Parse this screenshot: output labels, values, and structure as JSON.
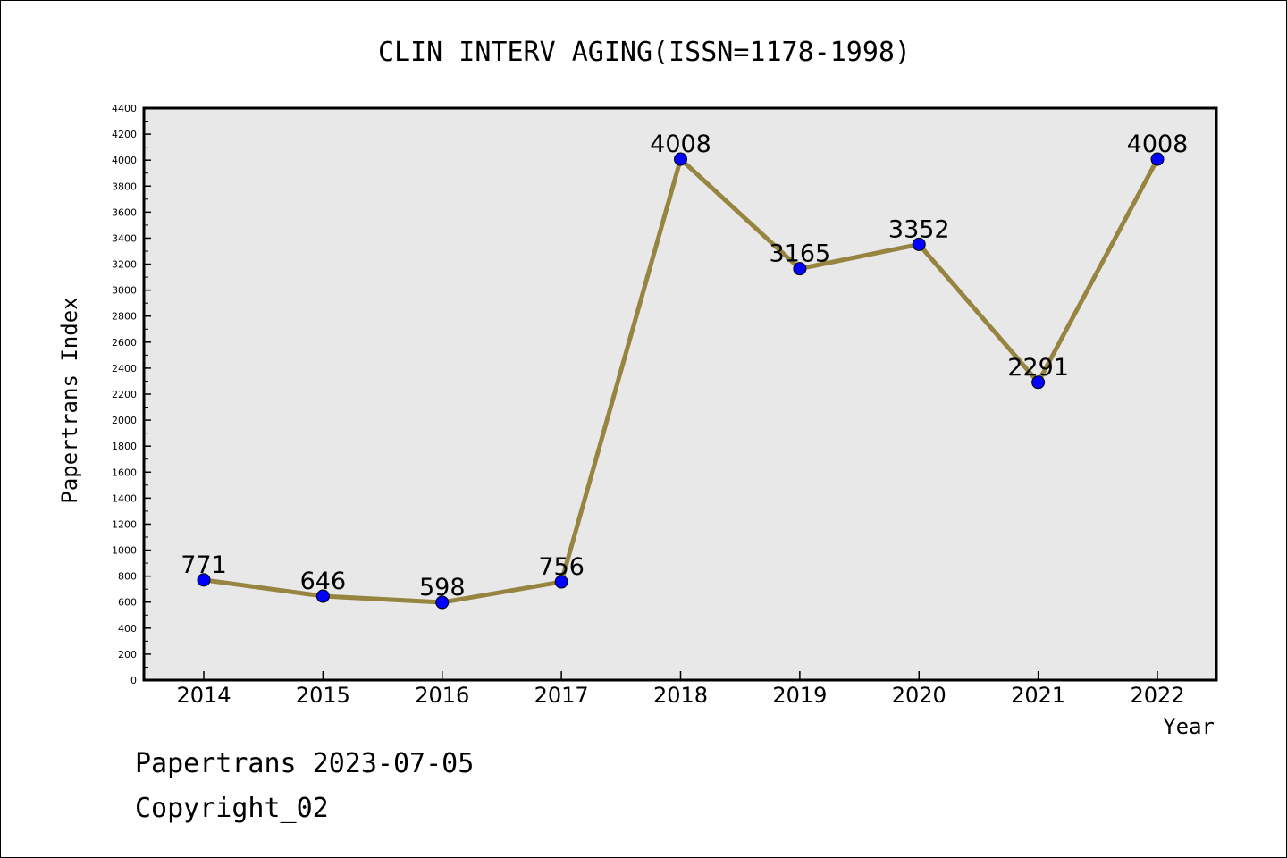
{
  "chart_data": {
    "type": "line",
    "title": "CLIN INTERV AGING(ISSN=1178-1998)",
    "xlabel": "Year",
    "ylabel": "Papertrans Index",
    "categories": [
      "2014",
      "2015",
      "2016",
      "2017",
      "2018",
      "2019",
      "2020",
      "2021",
      "2022"
    ],
    "series": [
      {
        "values": [
          771,
          646,
          598,
          756,
          4008,
          3165,
          3352,
          2291,
          4008
        ],
        "data_labels": [
          "771",
          "646",
          "598",
          "756",
          "4008",
          "3165",
          "3352",
          "2291",
          "4008"
        ]
      }
    ],
    "ylim": [
      0,
      4400
    ],
    "ytick_step": 200,
    "yticks": [
      "0",
      "200",
      "400",
      "600",
      "800",
      "1000",
      "1200",
      "1400",
      "1600",
      "1800",
      "2000",
      "2200",
      "2400",
      "2600",
      "2800",
      "3000",
      "3200",
      "3400",
      "3600",
      "3800",
      "4000",
      "4200",
      "4400"
    ],
    "grid": false,
    "legend": "none",
    "colors": {
      "line": "#968440",
      "marker": "#0000ff",
      "plot_background": "#e8e8e8",
      "axis": "#000000"
    }
  },
  "footer": {
    "date_line": "Papertrans 2023-07-05",
    "copyright_line": "Copyright_02"
  }
}
